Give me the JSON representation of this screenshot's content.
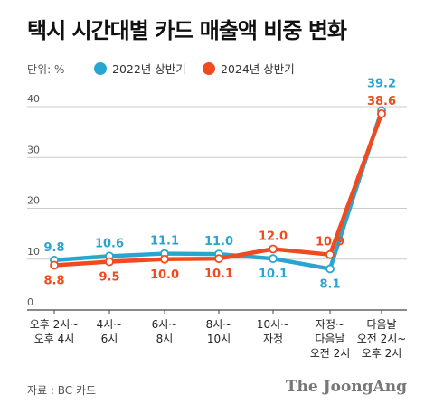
{
  "title": "택시 시간대별 카드 매출액 비중 변화",
  "unit": "단위: %",
  "source": "자료 : BC 카드",
  "brand": "The JoongAng",
  "colors": {
    "series_2022": "#29A6CF",
    "series_2024": "#F04A1E",
    "grid": "#CCCCCC",
    "axis": "#444444"
  },
  "chart_data": {
    "type": "line",
    "categories": [
      [
        "오후 2시~",
        "오후 4시"
      ],
      [
        "4시~",
        "6시"
      ],
      [
        "6시~",
        "8시"
      ],
      [
        "8시~",
        "10시"
      ],
      [
        "10시~",
        "자정"
      ],
      [
        "자정~",
        "다음날",
        "오전 2시"
      ],
      [
        "다음날",
        "오전 2시~",
        "오후 2시"
      ]
    ],
    "series": [
      {
        "name": "2022년 상반기",
        "values": [
          9.8,
          10.6,
          11.1,
          11.0,
          10.1,
          8.1,
          39.2
        ],
        "labels": [
          "9.8",
          "10.6",
          "11.1",
          "11.0",
          "10.1",
          "8.1",
          "39.2"
        ]
      },
      {
        "name": "2024년 상반기",
        "values": [
          8.8,
          9.5,
          10.0,
          10.1,
          12.0,
          10.9,
          38.6
        ],
        "labels": [
          "8.8",
          "9.5",
          "10.0",
          "10.1",
          "12.0",
          "10.9",
          "38.6"
        ]
      }
    ],
    "yticks": [
      0,
      10,
      20,
      30,
      40
    ],
    "ylim": [
      0,
      42
    ],
    "grid": true,
    "legend": "top"
  }
}
